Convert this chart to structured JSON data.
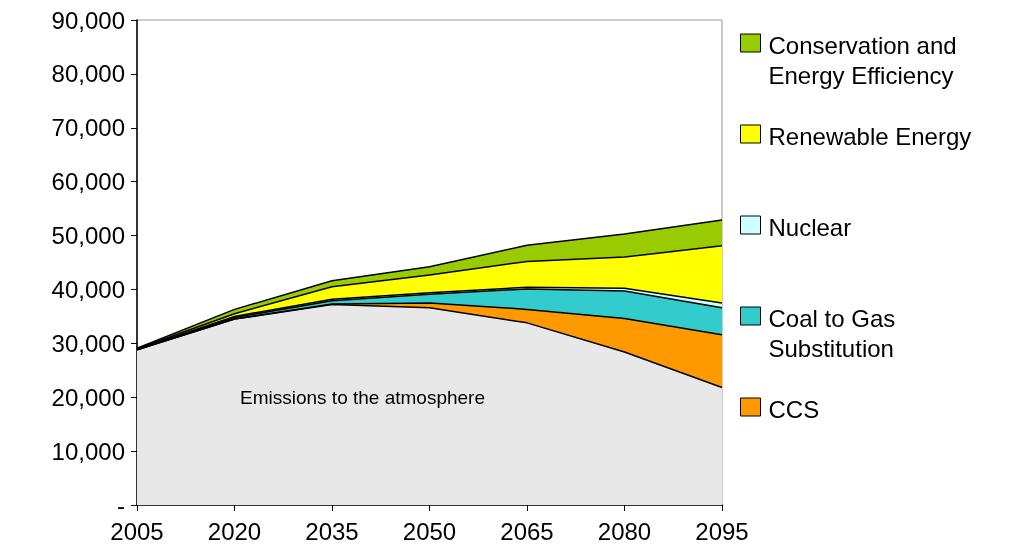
{
  "chart_data": {
    "type": "area",
    "stacked": true,
    "categories": [
      "2005",
      "2020",
      "2035",
      "2050",
      "2065",
      "2080",
      "2095"
    ],
    "series": [
      {
        "name": "Emissions to the atmosphere",
        "color": "#e8e8e8",
        "values": [
          28800,
          34500,
          37200,
          36600,
          33800,
          28400,
          21800
        ]
      },
      {
        "name": "CCS",
        "color": "#ff9900",
        "values": [
          0,
          0,
          100,
          900,
          2500,
          6200,
          9800
        ]
      },
      {
        "name": "Coal to Gas Substitution",
        "color": "#33cccc",
        "values": [
          0,
          300,
          600,
          1600,
          3800,
          5100,
          5000
        ]
      },
      {
        "name": "Nuclear",
        "color": "#ccffff",
        "values": [
          100,
          200,
          300,
          300,
          300,
          500,
          900
        ]
      },
      {
        "name": "Renewable Energy",
        "color": "#ffff00",
        "values": [
          100,
          500,
          2300,
          3300,
          4800,
          5800,
          10600
        ]
      },
      {
        "name": "Conservation and Energy Efficiency",
        "color": "#99cc00",
        "values": [
          100,
          800,
          1100,
          1500,
          3000,
          4300,
          4800
        ]
      }
    ],
    "ylim": [
      0,
      90000
    ],
    "yticks": [
      {
        "value": 0,
        "label": "-"
      },
      {
        "value": 10000,
        "label": "10,000"
      },
      {
        "value": 20000,
        "label": "20,000"
      },
      {
        "value": 30000,
        "label": "30,000"
      },
      {
        "value": 40000,
        "label": "40,000"
      },
      {
        "value": 50000,
        "label": "50,000"
      },
      {
        "value": 60000,
        "label": "60,000"
      },
      {
        "value": 70000,
        "label": "70,000"
      },
      {
        "value": 80000,
        "label": "80,000"
      },
      {
        "value": 90000,
        "label": "90,000"
      }
    ],
    "legend": "right",
    "grid": false,
    "marker": "none"
  }
}
